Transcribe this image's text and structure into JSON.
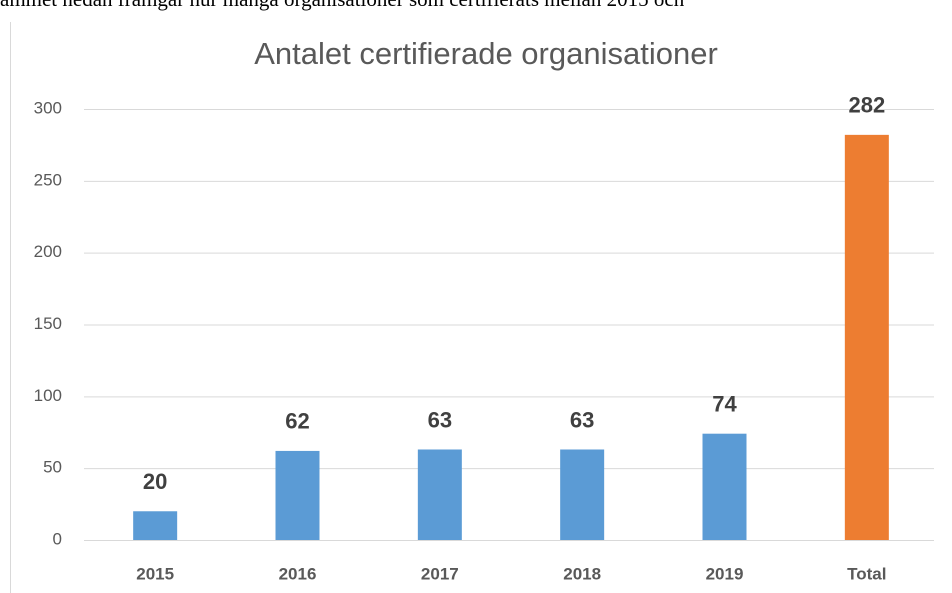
{
  "caption": "ammet nedan framgår hur många organisationer som certifierats mellan 2015 och",
  "chart_data": {
    "type": "bar",
    "title": "Antalet certifierade organisationer",
    "categories": [
      "2015",
      "2016",
      "2017",
      "2018",
      "2019",
      "Total"
    ],
    "values": [
      20,
      62,
      63,
      63,
      74,
      282
    ],
    "colors": [
      "#5b9bd5",
      "#5b9bd5",
      "#5b9bd5",
      "#5b9bd5",
      "#5b9bd5",
      "#ed7d31"
    ],
    "ylim": [
      0,
      300
    ],
    "yticks": [
      0,
      50,
      100,
      150,
      200,
      250,
      300
    ],
    "grid": true
  }
}
